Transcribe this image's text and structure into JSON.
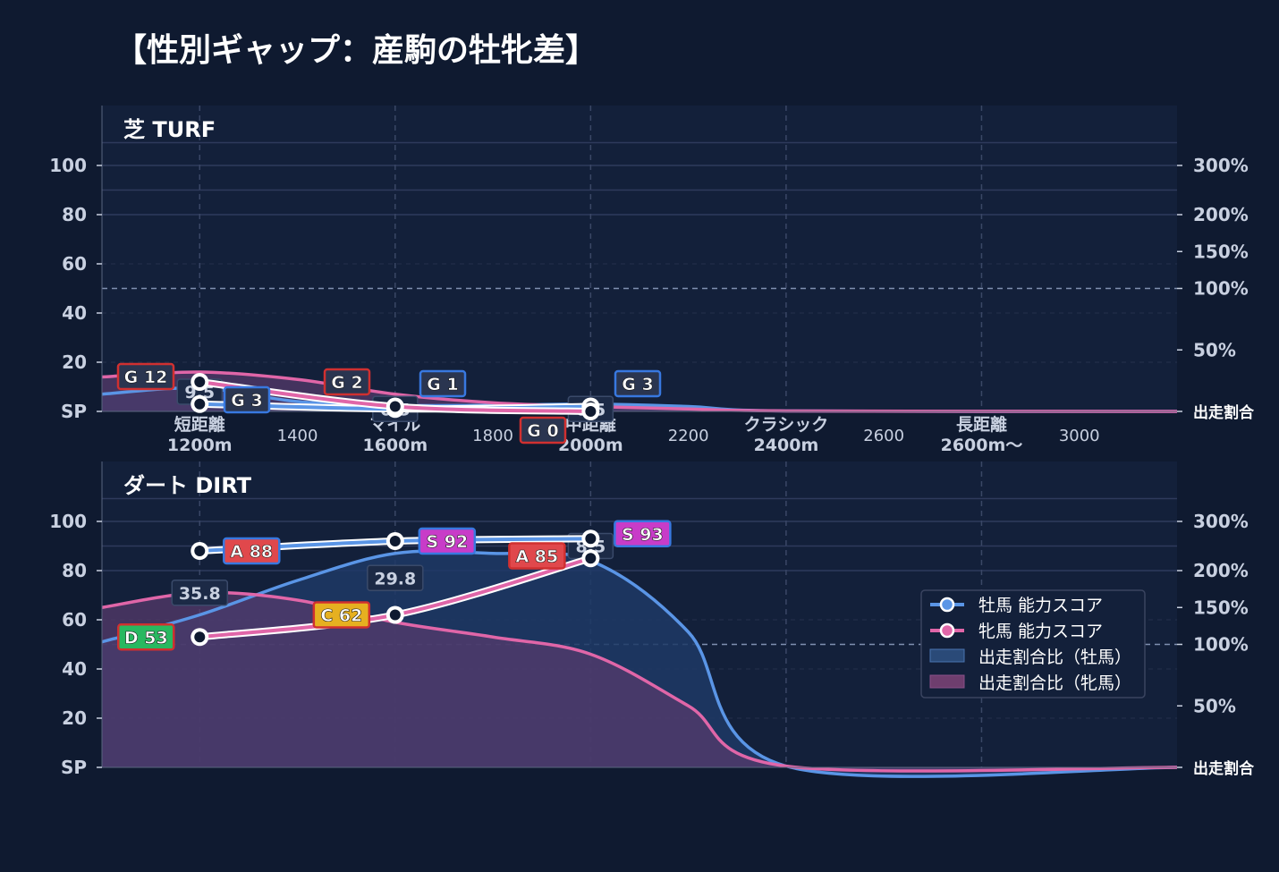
{
  "title": "【性別ギャップ：産駒の牡牝差】",
  "colors": {
    "background": "#0f1a30",
    "plot_bg": "#13203a",
    "male": "#5a95e6",
    "female": "#e066a8",
    "male_fill": "#1f3a66",
    "female_fill": "#5a3c6e",
    "grade_S": "#c83cc8",
    "grade_A": "#e0484c",
    "grade_C": "#e6b020",
    "grade_D": "#28b860",
    "grade_G": "#2a3550",
    "border_blue": "#3878e0",
    "border_red": "#d03030"
  },
  "axes": {
    "y_ticks": [
      "SP",
      "20",
      "40",
      "60",
      "80",
      "100"
    ],
    "right_ticks": [
      "出走割合",
      "50%",
      "100%",
      "150%",
      "200%",
      "300%"
    ],
    "x_categories": [
      {
        "x": 1200,
        "line1": "短距離",
        "line2": "1200m"
      },
      {
        "x": 1600,
        "line1": "マイル",
        "line2": "1600m"
      },
      {
        "x": 2000,
        "line1": "中距離",
        "line2": "2000m"
      },
      {
        "x": 2400,
        "line1": "クラシック",
        "line2": "2400m"
      },
      {
        "x": 2800,
        "line1": "長距離",
        "line2": "2600m〜"
      }
    ],
    "x_numeric": [
      {
        "x": 1400,
        "label": "1400"
      },
      {
        "x": 1800,
        "label": "1800"
      },
      {
        "x": 2200,
        "label": "2200"
      },
      {
        "x": 2600,
        "label": "2600"
      },
      {
        "x": 3000,
        "label": "3000"
      }
    ]
  },
  "legend": {
    "male_score": "牡馬 能力スコア",
    "female_score": "牝馬 能力スコア",
    "male_ratio": "出走割合比（牡馬）",
    "female_ratio": "出走割合比（牝馬）"
  },
  "chart_data": [
    {
      "type": "line",
      "title": "芝 TURF",
      "ylim": [
        0,
        110
      ],
      "x": [
        1200,
        1600,
        2000
      ],
      "series": [
        {
          "name": "牡馬 能力スコア",
          "values": [
            3,
            1,
            2
          ],
          "grades": [
            "G 3",
            "G 1",
            "G 3"
          ]
        },
        {
          "name": "牝馬 能力スコア",
          "values": [
            12,
            2,
            0
          ],
          "grades": [
            "G 12",
            "G 2",
            "G 0"
          ]
        }
      ],
      "ratio_male": [
        [
          1000,
          7
        ],
        [
          1200,
          9.5
        ],
        [
          1400,
          4
        ],
        [
          1600,
          2.5
        ],
        [
          1800,
          2.5
        ],
        [
          2000,
          3
        ],
        [
          2200,
          2
        ],
        [
          2400,
          0.2
        ],
        [
          3200,
          0
        ]
      ],
      "ratio_female": [
        [
          1000,
          14
        ],
        [
          1200,
          16
        ],
        [
          1400,
          13
        ],
        [
          1600,
          7
        ],
        [
          1800,
          3.5
        ],
        [
          2000,
          2
        ],
        [
          2200,
          1
        ],
        [
          2400,
          0.2
        ],
        [
          3200,
          0
        ]
      ],
      "pct_labels": [
        {
          "x": 1200,
          "y": 8,
          "text": "9.5"
        },
        {
          "x": 1600,
          "y": 1,
          "text": "0.5"
        },
        {
          "x": 2000,
          "y": 1,
          "text": "0.5"
        }
      ]
    },
    {
      "type": "line",
      "title": "ダート DIRT",
      "ylim": [
        0,
        110
      ],
      "x": [
        1200,
        1600,
        2000
      ],
      "series": [
        {
          "name": "牡馬 能力スコア",
          "values": [
            88,
            92,
            93
          ],
          "grades": [
            "A 88",
            "S 92",
            "S 93"
          ]
        },
        {
          "name": "牝馬 能力スコア",
          "values": [
            53,
            62,
            85
          ],
          "grades": [
            "D 53",
            "C 62",
            "A 85"
          ]
        }
      ],
      "ratio_male": [
        [
          1000,
          51
        ],
        [
          1200,
          62
        ],
        [
          1400,
          76
        ],
        [
          1600,
          87
        ],
        [
          1800,
          87
        ],
        [
          2000,
          84
        ],
        [
          2200,
          55
        ],
        [
          2400,
          0.5
        ],
        [
          3200,
          0
        ]
      ],
      "ratio_female": [
        [
          1000,
          65
        ],
        [
          1200,
          71
        ],
        [
          1400,
          68
        ],
        [
          1600,
          59
        ],
        [
          1800,
          53
        ],
        [
          2000,
          46
        ],
        [
          2200,
          25
        ],
        [
          2400,
          0.5
        ],
        [
          3200,
          0
        ]
      ],
      "pct_labels": [
        {
          "x": 1200,
          "y": 71,
          "text": "35.8"
        },
        {
          "x": 1600,
          "y": 77,
          "text": "29.8"
        },
        {
          "x": 2000,
          "y": 90,
          "text": "8.5"
        }
      ]
    }
  ]
}
